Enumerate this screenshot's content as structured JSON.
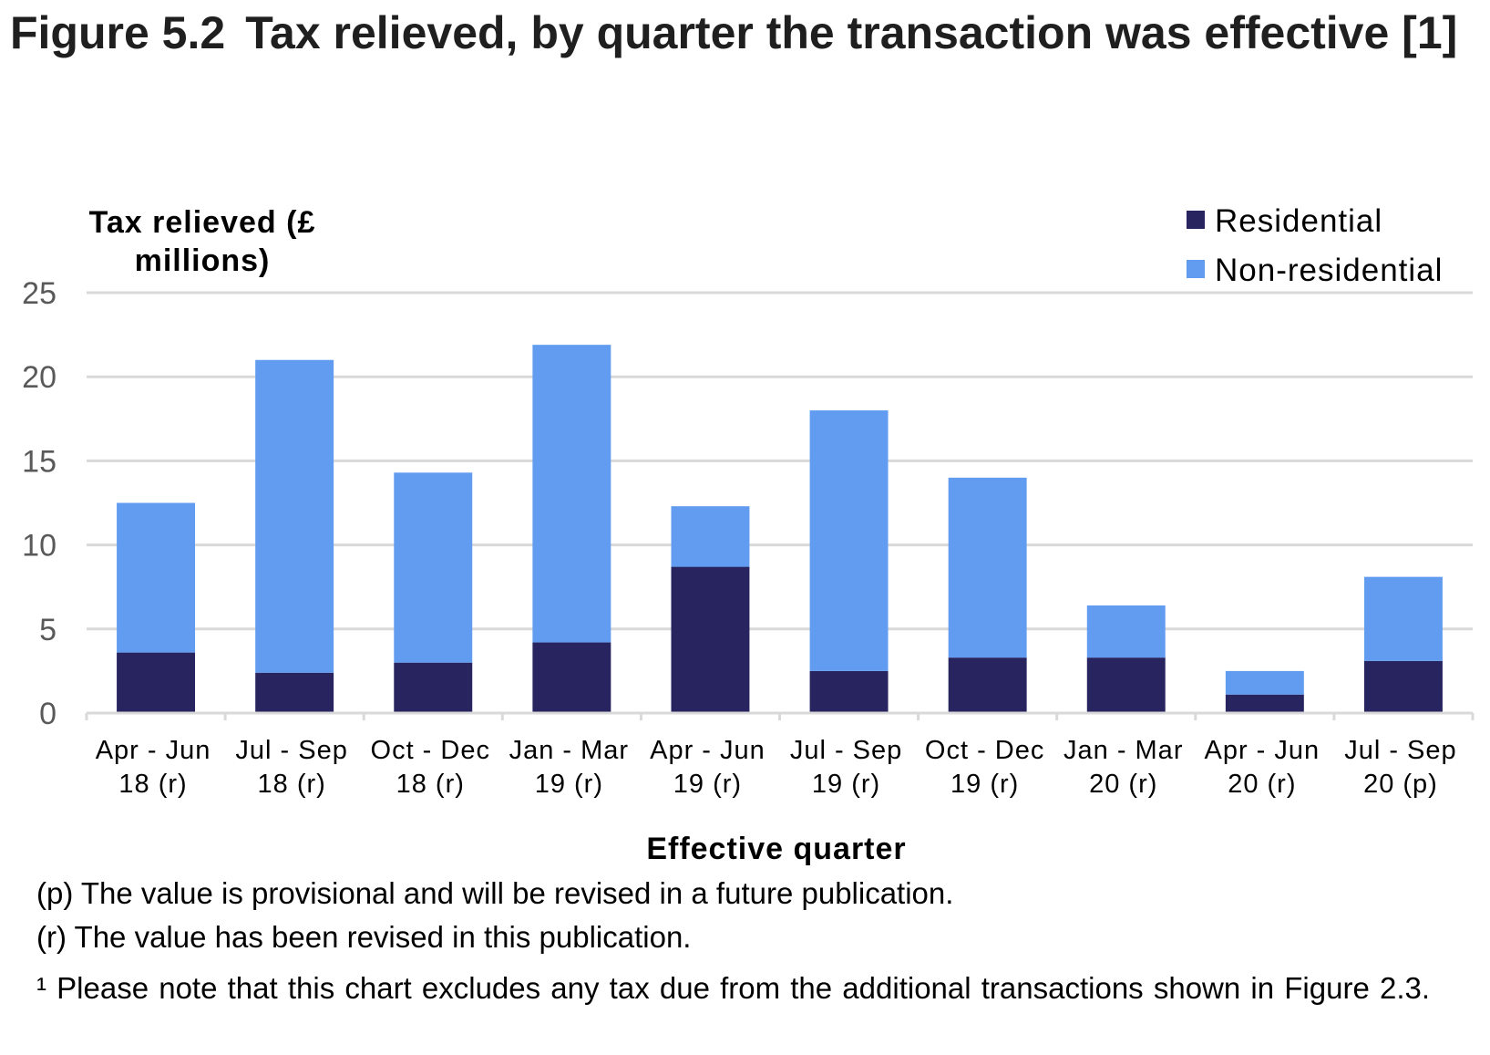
{
  "figure": {
    "number": "Figure 5.2",
    "title": "Tax relieved, by quarter the transaction was effective [1]"
  },
  "notes": [
    "(p) The value is provisional and will be revised in a future publication.",
    "(r) The value has been revised in this publication.",
    "¹ Please note that this chart excludes any tax due from the additional transactions shown in Figure 2.3."
  ],
  "chart_data": {
    "type": "bar",
    "stacked": true,
    "title": "Tax relieved, by quarter the transaction was effective [1]",
    "xlabel": "Effective quarter",
    "ylabel": "Tax relieved (£ millions)",
    "ylabel_lines": [
      "Tax relieved (£",
      "millions)"
    ],
    "ylim": [
      0,
      25
    ],
    "yticks": [
      0,
      5,
      10,
      15,
      20,
      25
    ],
    "grid": true,
    "legend_position": "top-right",
    "categories": [
      [
        "Apr - Jun",
        "18 (r)"
      ],
      [
        "Jul - Sep",
        "18 (r)"
      ],
      [
        "Oct - Dec",
        "18 (r)"
      ],
      [
        "Jan - Mar",
        "19 (r)"
      ],
      [
        "Apr - Jun",
        "19 (r)"
      ],
      [
        "Jul - Sep",
        "19 (r)"
      ],
      [
        "Oct - Dec",
        "19 (r)"
      ],
      [
        "Jan - Mar",
        "20 (r)"
      ],
      [
        "Apr - Jun",
        "20 (r)"
      ],
      [
        "Jul - Sep",
        "20 (p)"
      ]
    ],
    "series": [
      {
        "name": "Residential",
        "color": "#27245f",
        "values": [
          3.6,
          2.4,
          3.0,
          4.2,
          8.7,
          2.5,
          3.3,
          3.3,
          1.1,
          3.1
        ]
      },
      {
        "name": "Non-residential",
        "color": "#619cf0",
        "values": [
          8.9,
          18.6,
          11.3,
          17.7,
          3.6,
          15.5,
          10.7,
          3.1,
          1.4,
          5.0
        ]
      }
    ],
    "totals": [
      12.5,
      21.0,
      14.3,
      21.9,
      12.3,
      18.0,
      14.0,
      6.4,
      2.5,
      8.1
    ],
    "colors": {
      "gridline": "#d9d9d9",
      "tick_label": "#595959"
    }
  }
}
